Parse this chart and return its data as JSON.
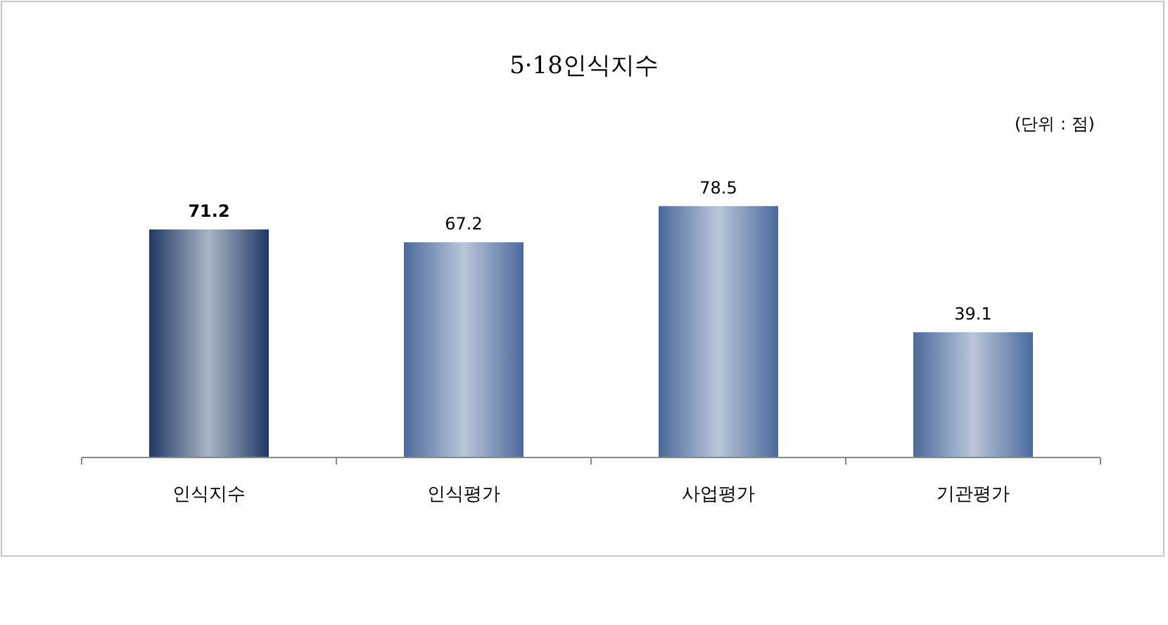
{
  "chart_data": {
    "type": "bar",
    "title": "5·18인식지수",
    "annotations": [
      "(단위 : 점)"
    ],
    "categories": [
      "인식지수",
      "인식평가",
      "사업평가",
      "기관평가"
    ],
    "values": [
      71.2,
      67.2,
      78.5,
      39.1
    ],
    "colors": [
      "#1f3a66",
      "#4a6a9c",
      "#4a6a9c",
      "#4a6a9c"
    ],
    "data_labels": true
  }
}
